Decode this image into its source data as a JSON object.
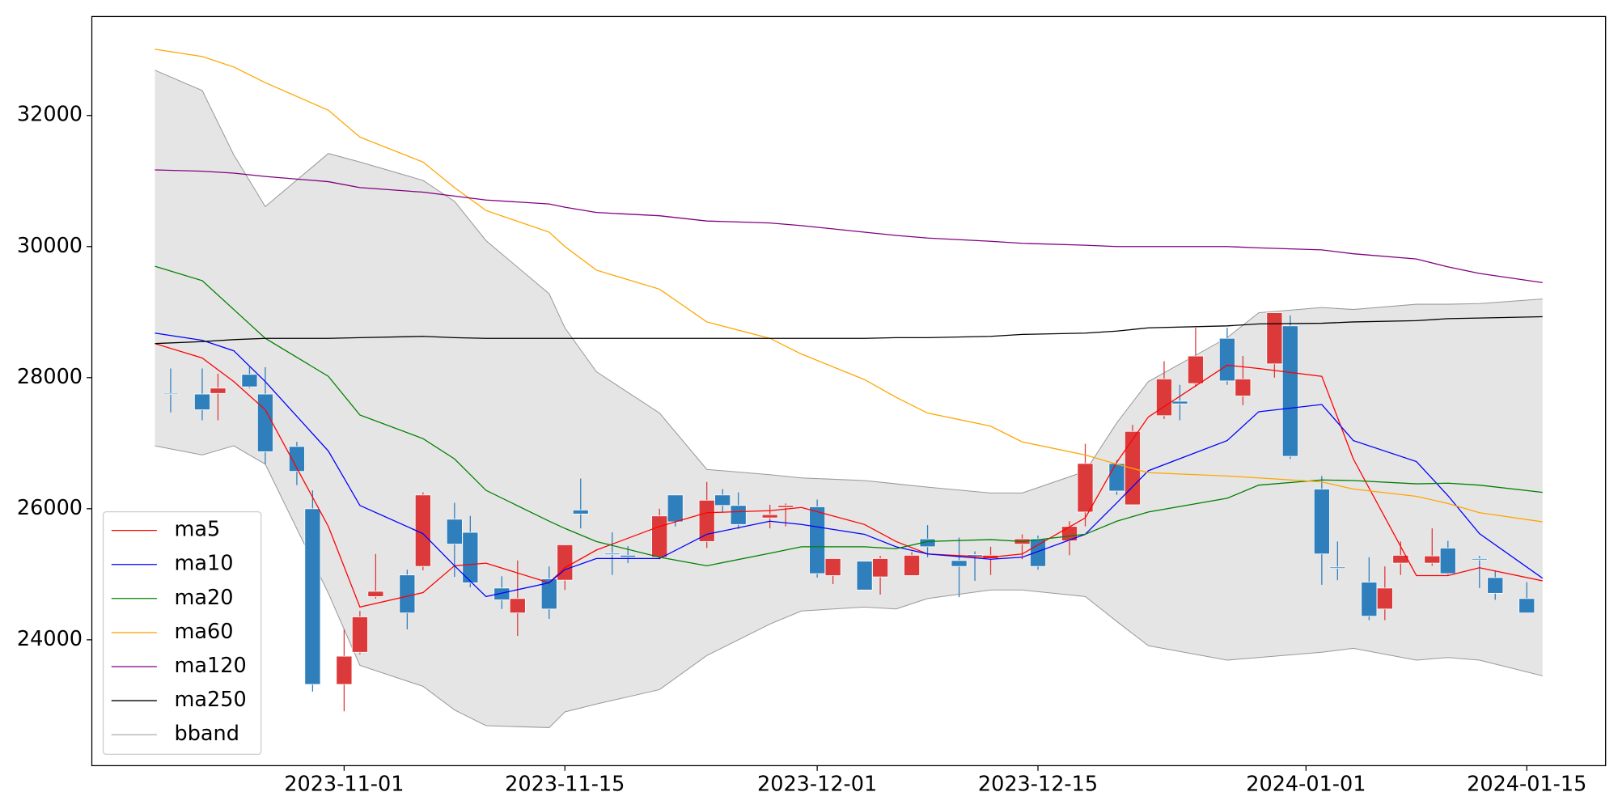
{
  "chart_data": {
    "type": "candlestick",
    "xlim": [
      "2023-10-16",
      "2024-01-20"
    ],
    "xticks": [
      "2023-11-01",
      "2023-11-15",
      "2023-12-01",
      "2023-12-15",
      "2024-01-01",
      "2024-01-15"
    ],
    "ylim": [
      22080,
      33510
    ],
    "yticks": [
      24000,
      26000,
      28000,
      30000,
      32000
    ],
    "legend": "lower left",
    "candles": {
      "up_color": "#dc3a3a",
      "down_color": "#2f7fbd",
      "x": [
        "2023-10-21",
        "2023-10-23",
        "2023-10-24",
        "2023-10-26",
        "2023-10-27",
        "2023-10-29",
        "2023-10-30",
        "2023-11-01",
        "2023-11-02",
        "2023-11-03",
        "2023-11-05",
        "2023-11-06",
        "2023-11-08",
        "2023-11-09",
        "2023-11-11",
        "2023-11-12",
        "2023-11-14",
        "2023-11-15",
        "2023-11-16",
        "2023-11-18",
        "2023-11-19",
        "2023-11-21",
        "2023-11-22",
        "2023-11-24",
        "2023-11-25",
        "2023-11-26",
        "2023-11-28",
        "2023-11-29",
        "2023-12-01",
        "2023-12-02",
        "2023-12-04",
        "2023-12-05",
        "2023-12-07",
        "2023-12-08",
        "2023-12-10",
        "2023-12-11",
        "2023-12-12",
        "2023-12-14",
        "2023-12-15",
        "2023-12-17",
        "2023-12-18",
        "2023-12-20",
        "2023-12-21",
        "2023-12-23",
        "2023-12-24",
        "2023-12-25",
        "2023-12-27",
        "2023-12-28",
        "2023-12-30",
        "2023-12-31",
        "2024-01-02",
        "2024-01-03",
        "2024-01-05",
        "2024-01-06",
        "2024-01-07",
        "2024-01-09",
        "2024-01-10",
        "2024-01-12",
        "2024-01-13",
        "2024-01-15"
      ],
      "open": [
        27760,
        27750,
        27760,
        28050,
        27750,
        26950,
        26000,
        23320,
        23810,
        24660,
        24990,
        25120,
        25840,
        25640,
        24790,
        24410,
        24930,
        24910,
        25980,
        25320,
        25290,
        25260,
        26210,
        25500,
        26210,
        26050,
        25860,
        26020,
        26030,
        24980,
        25200,
        24960,
        24980,
        25540,
        25210,
        25300,
        25240,
        25460,
        25540,
        25510,
        25950,
        26690,
        26060,
        27420,
        27640,
        27910,
        28600,
        27720,
        28210,
        28790,
        26300,
        25110,
        24880,
        24470,
        25170,
        25170,
        25400,
        25240,
        24950,
        24630
      ],
      "high": [
        28140,
        28140,
        28060,
        28160,
        28160,
        27020,
        26280,
        24160,
        24440,
        25310,
        25070,
        26250,
        26090,
        25890,
        24970,
        25210,
        25120,
        25450,
        26460,
        25640,
        25430,
        26000,
        26210,
        26410,
        26300,
        26250,
        26060,
        26080,
        26140,
        25240,
        25200,
        25280,
        25340,
        25750,
        25560,
        25350,
        25420,
        25610,
        25590,
        25810,
        26990,
        26740,
        27280,
        28250,
        27890,
        28760,
        28760,
        28330,
        28990,
        28950,
        26500,
        25500,
        25260,
        25120,
        25500,
        25700,
        25510,
        25280,
        25060,
        24880
      ],
      "low": [
        27470,
        27350,
        27350,
        27840,
        26680,
        26360,
        23210,
        22910,
        23780,
        24630,
        24160,
        25060,
        24960,
        24800,
        24470,
        24060,
        24320,
        24760,
        25700,
        24990,
        25170,
        25230,
        25730,
        25400,
        25940,
        25690,
        25700,
        25730,
        24950,
        24850,
        24760,
        24690,
        24980,
        25260,
        24650,
        24900,
        24990,
        25230,
        25070,
        25290,
        25730,
        26210,
        26060,
        27370,
        27350,
        27860,
        27890,
        27580,
        28000,
        26760,
        24840,
        24910,
        24300,
        24300,
        24990,
        25130,
        24990,
        24790,
        24610,
        24410
      ],
      "close": [
        27750,
        27510,
        27840,
        27860,
        26870,
        26570,
        23320,
        23750,
        24350,
        24740,
        24410,
        26210,
        25460,
        24870,
        24610,
        24630,
        24470,
        25450,
        25920,
        25300,
        25260,
        25890,
        25800,
        26130,
        26050,
        25760,
        25910,
        26050,
        25010,
        25240,
        24760,
        25240,
        25290,
        25420,
        25120,
        25280,
        25290,
        25540,
        25120,
        25730,
        26690,
        26270,
        27180,
        27980,
        27600,
        28330,
        27950,
        27980,
        28990,
        26800,
        25310,
        25090,
        24360,
        24790,
        25290,
        25280,
        25010,
        25220,
        24710,
        24410
      ]
    },
    "x": [
      "2023-10-20",
      "2023-10-23",
      "2023-10-25",
      "2023-10-27",
      "2023-10-31",
      "2023-11-02",
      "2023-11-06",
      "2023-11-08",
      "2023-11-10",
      "2023-11-14",
      "2023-11-15",
      "2023-11-17",
      "2023-11-21",
      "2023-11-24",
      "2023-11-28",
      "2023-11-30",
      "2023-12-04",
      "2023-12-06",
      "2023-12-08",
      "2023-12-12",
      "2023-12-14",
      "2023-12-18",
      "2023-12-20",
      "2023-12-22",
      "2023-12-27",
      "2023-12-29",
      "2024-01-02",
      "2024-01-04",
      "2024-01-08",
      "2024-01-10",
      "2024-01-12",
      "2024-01-16"
    ],
    "series": [
      {
        "name": "ma5",
        "color": "#ff0000",
        "values": [
          28520,
          28300,
          27940,
          27510,
          25730,
          24500,
          24720,
          25130,
          25170,
          24870,
          25100,
          25370,
          25730,
          25940,
          25970,
          26020,
          25760,
          25500,
          25310,
          25260,
          25310,
          25860,
          26710,
          27400,
          28190,
          28140,
          28020,
          26760,
          24980,
          24980,
          25100,
          24900
        ]
      },
      {
        "name": "ma10",
        "color": "#0000ff",
        "values": [
          28680,
          28570,
          28410,
          27940,
          26880,
          26050,
          25620,
          25130,
          24660,
          24870,
          25070,
          25240,
          25240,
          25610,
          25810,
          25760,
          25610,
          25420,
          25310,
          25230,
          25260,
          25610,
          26090,
          26580,
          27040,
          27480,
          27590,
          27040,
          26720,
          26200,
          25620,
          24940
        ]
      },
      {
        "name": "ma20",
        "color": "#008000",
        "values": [
          29700,
          29480,
          29040,
          28600,
          28020,
          27430,
          27070,
          26760,
          26280,
          25810,
          25700,
          25500,
          25260,
          25130,
          25320,
          25420,
          25420,
          25390,
          25500,
          25530,
          25500,
          25610,
          25810,
          25950,
          26160,
          26360,
          26440,
          26430,
          26380,
          26390,
          26360,
          26250
        ]
      },
      {
        "name": "ma60",
        "color": "#ffa500",
        "values": [
          33010,
          32900,
          32740,
          32500,
          32080,
          31670,
          31290,
          30900,
          30550,
          30220,
          30000,
          29640,
          29350,
          28850,
          28600,
          28360,
          27970,
          27700,
          27460,
          27260,
          27020,
          26820,
          26680,
          26550,
          26500,
          26470,
          26410,
          26300,
          26190,
          26080,
          25940,
          25800
        ]
      },
      {
        "name": "ma120",
        "color": "#800080",
        "values": [
          31170,
          31150,
          31120,
          31070,
          30990,
          30900,
          30830,
          30770,
          30710,
          30650,
          30600,
          30520,
          30470,
          30390,
          30360,
          30320,
          30220,
          30170,
          30130,
          30080,
          30050,
          30020,
          30000,
          30000,
          30000,
          29980,
          29950,
          29890,
          29810,
          29690,
          29590,
          29450
        ]
      },
      {
        "name": "ma250",
        "color": "#000000",
        "values": [
          28520,
          28550,
          28580,
          28600,
          28600,
          28610,
          28630,
          28610,
          28600,
          28600,
          28600,
          28600,
          28600,
          28600,
          28600,
          28600,
          28600,
          28610,
          28610,
          28630,
          28660,
          28680,
          28710,
          28760,
          28790,
          28820,
          28830,
          28850,
          28870,
          28900,
          28910,
          28930
        ]
      }
    ],
    "bband": {
      "name": "bband",
      "color": "#999999",
      "fill": "#e5e5e5",
      "upper": [
        32690,
        32380,
        31400,
        30610,
        31420,
        31290,
        31010,
        30690,
        30090,
        29280,
        28760,
        28090,
        27460,
        26600,
        26520,
        26470,
        26430,
        26380,
        26330,
        26240,
        26240,
        26570,
        27310,
        27940,
        28610,
        28990,
        29070,
        29040,
        29120,
        29120,
        29130,
        29200
      ],
      "lower": [
        26960,
        26820,
        26960,
        26680,
        24710,
        23610,
        23290,
        22930,
        22690,
        22660,
        22900,
        23020,
        23240,
        23760,
        24240,
        24440,
        24500,
        24470,
        24630,
        24760,
        24760,
        24660,
        24280,
        23910,
        23690,
        23730,
        23810,
        23870,
        23690,
        23730,
        23690,
        23450
      ]
    }
  }
}
